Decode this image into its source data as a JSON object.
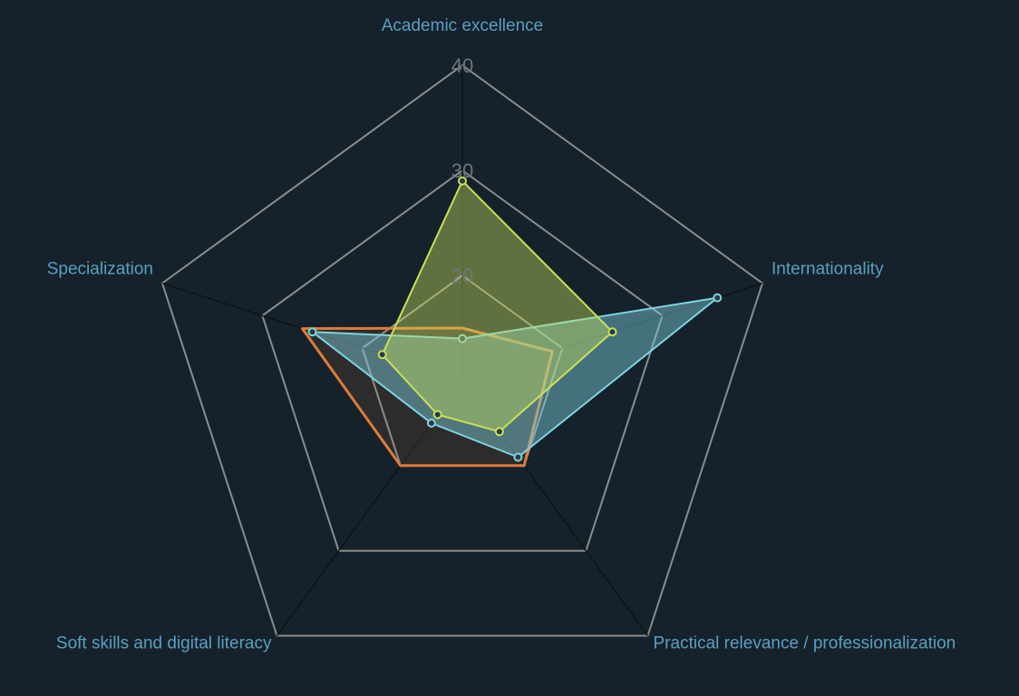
{
  "chart_data": {
    "type": "radar",
    "axes": [
      "Academic excellence",
      "Internationality",
      "Practical relevance / professionalization",
      "Soft skills and digital literacy",
      "Specialization"
    ],
    "r_ticks": [
      20,
      30,
      40
    ],
    "r_range": [
      10,
      40
    ],
    "grid": true,
    "series": [
      {
        "color": "#e07b39",
        "fill_opacity": 0.12,
        "stroke_width": 3,
        "show_points": false,
        "values": [
          15,
          19,
          20,
          20,
          26
        ]
      },
      {
        "color": "#7ed3df",
        "fill_opacity": 0.45,
        "stroke_width": 2,
        "show_points": true,
        "values": [
          14,
          35.5,
          19,
          15,
          25
        ]
      },
      {
        "color": "#c8e05a",
        "fill_opacity": 0.42,
        "stroke_width": 2,
        "show_points": true,
        "values": [
          29,
          25,
          16,
          14,
          18
        ]
      }
    ]
  }
}
